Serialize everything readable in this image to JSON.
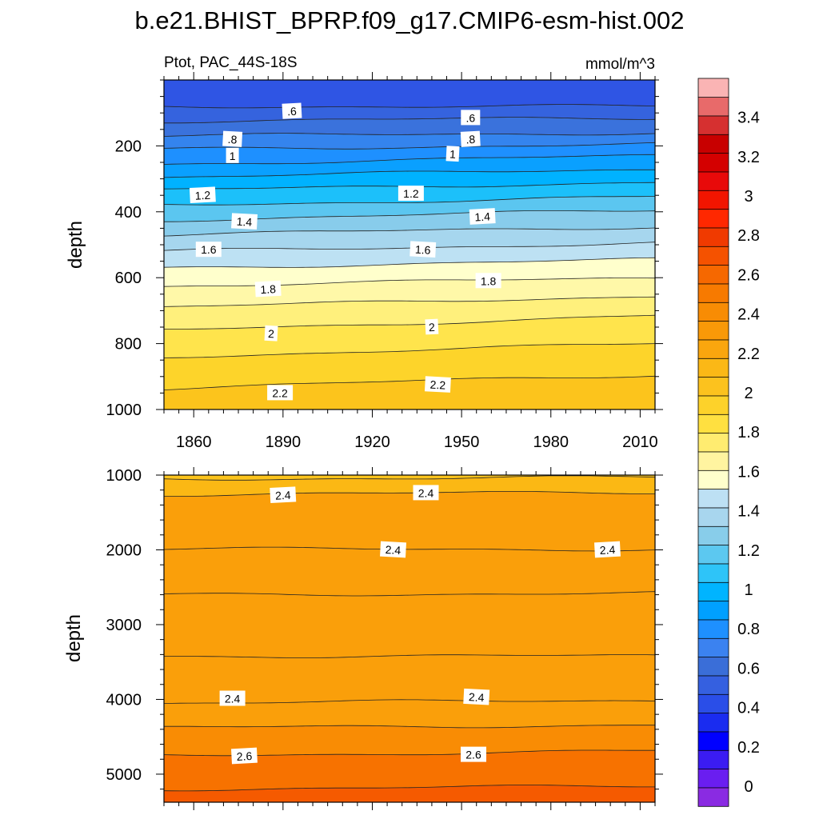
{
  "figure": {
    "title": "b.e21.BHIST_BPRP.f09_g17.CMIP6-esm-hist.002",
    "subtitle_left": "Ptot, PAC_44S-18S",
    "units": "mmol/m^3"
  },
  "chart_data": [
    {
      "type": "heatmap",
      "panel": "upper",
      "title": "Ptot, PAC_44S-18S",
      "xlabel": "",
      "ylabel": "depth",
      "xlim": [
        1850,
        2015
      ],
      "ylim": [
        1000,
        0
      ],
      "xticks": [
        1860,
        1890,
        1920,
        1950,
        1980,
        2010
      ],
      "yticks": [
        200,
        400,
        600,
        800,
        1000
      ],
      "contour_levels": [
        0.6,
        0.7,
        0.8,
        0.9,
        1.0,
        1.1,
        1.2,
        1.3,
        1.4,
        1.5,
        1.6,
        1.7,
        1.8,
        1.9,
        2.0,
        2.1,
        2.2
      ],
      "contours": [
        {
          "level": 0.6,
          "depth_start": 80,
          "depth_end": 80
        },
        {
          "level": 0.7,
          "depth_start": 125,
          "depth_end": 115
        },
        {
          "level": 0.8,
          "depth_start": 170,
          "depth_end": 160
        },
        {
          "level": 0.9,
          "depth_start": 210,
          "depth_end": 195
        },
        {
          "level": 1.0,
          "depth_start": 255,
          "depth_end": 230
        },
        {
          "level": 1.1,
          "depth_start": 295,
          "depth_end": 270
        },
        {
          "level": 1.2,
          "depth_start": 335,
          "depth_end": 310
        },
        {
          "level": 1.3,
          "depth_start": 380,
          "depth_end": 355
        },
        {
          "level": 1.4,
          "depth_start": 425,
          "depth_end": 395
        },
        {
          "level": 1.5,
          "depth_start": 470,
          "depth_end": 445
        },
        {
          "level": 1.6,
          "depth_start": 520,
          "depth_end": 495
        },
        {
          "level": 1.7,
          "depth_start": 570,
          "depth_end": 545
        },
        {
          "level": 1.8,
          "depth_start": 625,
          "depth_end": 600
        },
        {
          "level": 1.9,
          "depth_start": 690,
          "depth_end": 655
        },
        {
          "level": 2.0,
          "depth_start": 760,
          "depth_end": 715
        },
        {
          "level": 2.1,
          "depth_start": 840,
          "depth_end": 800
        },
        {
          "level": 2.2,
          "depth_start": 935,
          "depth_end": 895
        }
      ],
      "contour_labels": [
        {
          "text": ".6",
          "year": 1893,
          "depth": 95
        },
        {
          "text": ".6",
          "year": 1953,
          "depth": 115
        },
        {
          "text": ".8",
          "year": 1873,
          "depth": 180
        },
        {
          "text": ".8",
          "year": 1953,
          "depth": 180
        },
        {
          "text": "1",
          "year": 1873,
          "depth": 230
        },
        {
          "text": "1",
          "year": 1947,
          "depth": 225
        },
        {
          "text": "1.2",
          "year": 1863,
          "depth": 350
        },
        {
          "text": "1.2",
          "year": 1933,
          "depth": 345
        },
        {
          "text": "1.4",
          "year": 1877,
          "depth": 430
        },
        {
          "text": "1.4",
          "year": 1957,
          "depth": 415
        },
        {
          "text": "1.6",
          "year": 1865,
          "depth": 515
        },
        {
          "text": "1.6",
          "year": 1937,
          "depth": 515
        },
        {
          "text": "1.8",
          "year": 1885,
          "depth": 635
        },
        {
          "text": "1.8",
          "year": 1959,
          "depth": 610
        },
        {
          "text": "2",
          "year": 1886,
          "depth": 770
        },
        {
          "text": "2",
          "year": 1940,
          "depth": 750
        },
        {
          "text": "2.2",
          "year": 1889,
          "depth": 950
        },
        {
          "text": "2.2",
          "year": 1942,
          "depth": 925
        }
      ]
    },
    {
      "type": "heatmap",
      "panel": "lower",
      "xlabel": "",
      "ylabel": "depth",
      "xlim": [
        1850,
        2015
      ],
      "ylim": [
        5375,
        1000
      ],
      "xticks": [
        1860,
        1890,
        1920,
        1950,
        1980,
        2010
      ],
      "yticks": [
        1000,
        2000,
        3000,
        4000,
        5000
      ],
      "contour_levels": [
        2.4,
        2.5,
        2.6,
        2.7
      ],
      "contours": [
        {
          "level": 2.3,
          "depth_start": 1050,
          "depth_end": 1030,
          "note": "unlabeled"
        },
        {
          "level": 2.4,
          "depth_start": 1260,
          "depth_end": 1230
        },
        {
          "level": 2.4,
          "depth_start": 1990,
          "depth_end": 1990
        },
        {
          "level": 2.4,
          "depth_start": 2600,
          "depth_end": 2580
        },
        {
          "level": 2.4,
          "depth_start": 3420,
          "depth_end": 3420
        },
        {
          "level": 2.4,
          "depth_start": 4050,
          "depth_end": 4010
        },
        {
          "level": 2.5,
          "depth_start": 4380,
          "depth_end": 4340
        },
        {
          "level": 2.6,
          "depth_start": 4750,
          "depth_end": 4690
        },
        {
          "level": 2.7,
          "depth_start": 5200,
          "depth_end": 5160
        }
      ],
      "contour_labels": [
        {
          "text": "2.4",
          "year": 1890,
          "depth": 1270
        },
        {
          "text": "2.4",
          "year": 1938,
          "depth": 1240
        },
        {
          "text": "2.4",
          "year": 1927,
          "depth": 2000
        },
        {
          "text": "2.4",
          "year": 1999,
          "depth": 2000
        },
        {
          "text": "2.4",
          "year": 1873,
          "depth": 3990
        },
        {
          "text": "2.4",
          "year": 1955,
          "depth": 3970
        },
        {
          "text": "2.6",
          "year": 1877,
          "depth": 4760
        },
        {
          "text": "2.6",
          "year": 1954,
          "depth": 4740
        }
      ]
    }
  ],
  "colorbar": {
    "labels": [
      "0",
      "0.2",
      "0.4",
      "0.6",
      "0.8",
      "1",
      "1.2",
      "1.4",
      "1.6",
      "1.8",
      "2",
      "2.2",
      "2.4",
      "2.6",
      "2.8",
      "3",
      "3.2",
      "3.4"
    ],
    "colors": [
      "#8a2be2",
      "#6a1ef0",
      "#3b1cf2",
      "#0000ff",
      "#1a2cf0",
      "#2a4ee8",
      "#3560e0",
      "#3a6ed8",
      "#3b82f0",
      "#1e90ff",
      "#00a0ff",
      "#00b4ff",
      "#2ec4f8",
      "#5cc8f0",
      "#88cdea",
      "#a8d6ee",
      "#bde0f4",
      "#ffffcc",
      "#fff4a0",
      "#ffec70",
      "#ffe040",
      "#fdd22a",
      "#fcc21e",
      "#fbb816",
      "#faa60e",
      "#f99908",
      "#f88c04",
      "#f77a00",
      "#f66800",
      "#f55200",
      "#f03a00",
      "#ff2800",
      "#f21500",
      "#e80a0a",
      "#d40000",
      "#c80000",
      "#d63030",
      "#e86a6a",
      "#fab4b4"
    ]
  }
}
